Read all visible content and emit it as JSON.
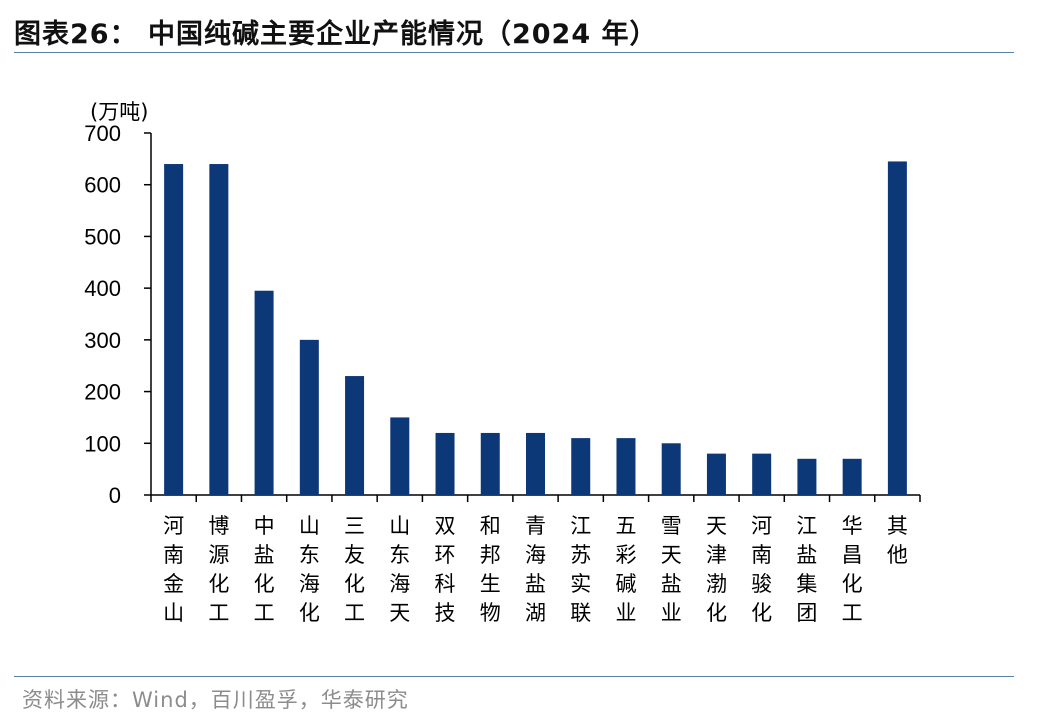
{
  "header": {
    "title": "图表26：  中国纯碱主要企业产能情况（2024 年）"
  },
  "footer": {
    "source": "资料来源：Wind，百川盈孚，华泰研究"
  },
  "colors": {
    "bar": "#0d3878",
    "axis": "#000000",
    "rule": "#5b82a8"
  },
  "chart_data": {
    "type": "bar",
    "title": "",
    "xlabel": "",
    "ylabel": "(万吨)",
    "ylim": [
      0,
      700
    ],
    "yticks": [
      0,
      100,
      200,
      300,
      400,
      500,
      600,
      700
    ],
    "grid": false,
    "categories": [
      "河南金山",
      "博源化工",
      "中盐化工",
      "山东海化",
      "三友化工",
      "山东海天",
      "双环科技",
      "和邦生物",
      "青海盐湖",
      "江苏实联",
      "五彩碱业",
      "雪天盐业",
      "天津渤化",
      "河南骏化",
      "江盐集团",
      "华昌化工",
      "其他"
    ],
    "values": [
      640,
      640,
      395,
      300,
      230,
      150,
      120,
      120,
      120,
      110,
      110,
      100,
      80,
      80,
      70,
      70,
      645
    ]
  }
}
